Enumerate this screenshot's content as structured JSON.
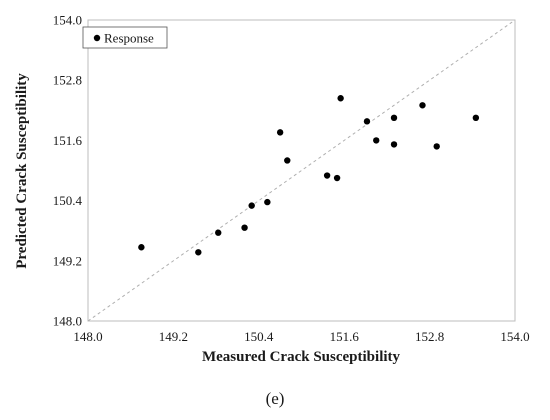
{
  "chart_data": {
    "type": "scatter",
    "title": "",
    "xlabel": "Measured Crack Susceptibility",
    "ylabel": "Predicted Crack Susceptibility",
    "xlim": [
      148.0,
      154.0
    ],
    "ylim": [
      148.0,
      154.0
    ],
    "xticks": [
      "148.0",
      "149.2",
      "150.4",
      "151.6",
      "152.8",
      "154.0"
    ],
    "yticks": [
      "148.0",
      "149.2",
      "150.4",
      "151.6",
      "152.8",
      "154.0"
    ],
    "grid": false,
    "legend": {
      "position": "top-left",
      "entries": [
        "Response"
      ]
    },
    "reference_line": {
      "type": "y=x",
      "style": "dashed",
      "color": "#b0b0b0"
    },
    "series": [
      {
        "name": "Response",
        "color": "#000000",
        "x": [
          148.75,
          149.55,
          149.83,
          150.2,
          150.3,
          150.52,
          150.7,
          150.8,
          151.36,
          151.5,
          151.55,
          151.92,
          152.05,
          152.3,
          152.3,
          152.7,
          152.9,
          153.45
        ],
        "y": [
          149.47,
          149.37,
          149.76,
          149.86,
          150.3,
          150.37,
          151.76,
          151.2,
          150.9,
          150.85,
          152.44,
          151.98,
          151.6,
          151.52,
          152.05,
          152.3,
          151.48,
          152.05
        ]
      }
    ]
  },
  "caption": "(e)"
}
